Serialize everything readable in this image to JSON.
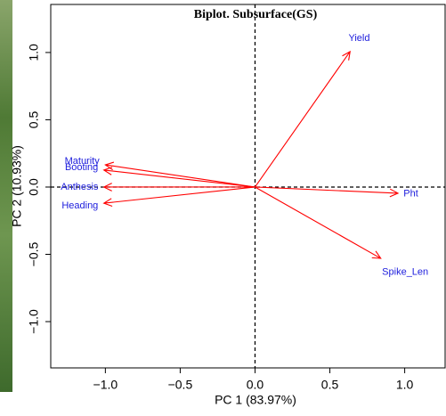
{
  "chart_data": {
    "type": "biplot",
    "title": "Biplot. Subsurface(GS)",
    "xlabel": "PC 1 (83.97%)",
    "ylabel": "PC 2 (10.93%)",
    "xlim": [
      -1.365,
      1.27
    ],
    "ylim": [
      -1.344,
      1.357
    ],
    "xticks": [
      {
        "value": -1,
        "label": "−1.0"
      },
      {
        "value": -0.5,
        "label": "−0.5"
      },
      {
        "value": 0,
        "label": "0.0"
      },
      0.5,
      {
        "value": 1,
        "label": "1.0"
      }
    ],
    "yticks": [
      {
        "value": -1,
        "label": "−1.0"
      },
      {
        "value": -0.5,
        "label": "−0.5"
      },
      {
        "value": 0,
        "label": "0.0"
      },
      0.5,
      {
        "value": 1,
        "label": "1.0"
      }
    ],
    "arrow_color": "#ff0000",
    "label_color": "#1c1cdc",
    "vectors": [
      {
        "name": "Yield",
        "x": 0.635,
        "y": 1.007
      },
      {
        "name": "Pht",
        "x": 0.955,
        "y": -0.046
      },
      {
        "name": "Spike_Len",
        "x": 0.84,
        "y": -0.53
      },
      {
        "name": "Maturity",
        "x": -1.0,
        "y": 0.165
      },
      {
        "name": "Booting",
        "x": -1.01,
        "y": 0.126
      },
      {
        "name": "Anthesis",
        "x": -1.01,
        "y": 0.0
      },
      {
        "name": "Heading",
        "x": -1.01,
        "y": -0.12
      }
    ]
  }
}
